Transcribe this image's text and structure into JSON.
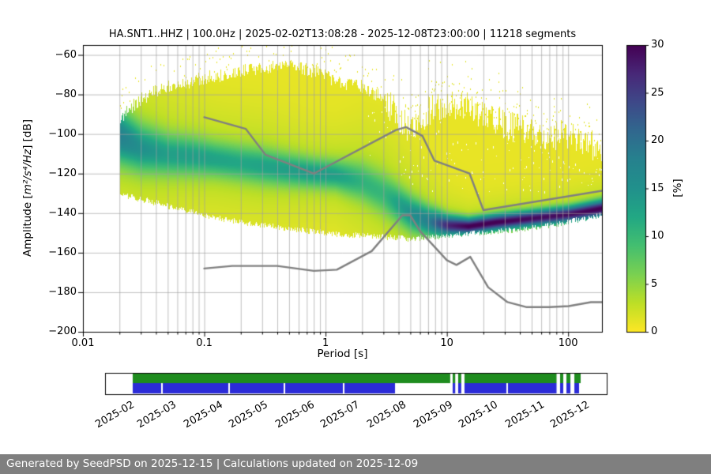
{
  "station": {
    "id": "HA.SNT1..HHZ",
    "sampling_rate": "100.0Hz",
    "start": "2025-02-02T13:08:28",
    "end": "2025-12-08T23:00:00",
    "segments": "11218"
  },
  "footer": {
    "text": "Generated by SeedPSD on 2025-12-15 | Calculations updated on 2025-12-09"
  },
  "colors": {
    "background": "#ffffff",
    "spine": "#000000",
    "grid": "rgba(160,160,160,0.75)",
    "footer_bg": "#7f7f7f",
    "footer_text": "#ffffff",
    "timeline_green": "#1e8c1e",
    "timeline_blue": "#2b2bd8",
    "noise_model_line": "#808080"
  },
  "chart_data": {
    "type": "heatmap",
    "title": "HA.SNT1..HHZ | 100.0Hz | 2025-02-02T13:08:28 - 2025-12-08T23:00:00 | 11218 segments",
    "xlabel": "Period [s]",
    "ylabel": {
      "pre": "Amplitude [",
      "math": "m²/s⁴/Hz",
      "post": "] [dB]"
    },
    "x_scale": "log",
    "xlim": [
      0.01,
      190
    ],
    "ylim": [
      -200,
      -55
    ],
    "grid": true,
    "x_ticks": [
      {
        "v": 0.01,
        "label": "0.01"
      },
      {
        "v": 0.1,
        "label": "0.1"
      },
      {
        "v": 1,
        "label": "1"
      },
      {
        "v": 10,
        "label": "10"
      },
      {
        "v": 100,
        "label": "100"
      }
    ],
    "y_ticks": [
      {
        "v": -60,
        "label": "−60"
      },
      {
        "v": -80,
        "label": "−80"
      },
      {
        "v": -100,
        "label": "−100"
      },
      {
        "v": -120,
        "label": "−120"
      },
      {
        "v": -140,
        "label": "−140"
      },
      {
        "v": -160,
        "label": "−160"
      },
      {
        "v": -180,
        "label": "−180"
      },
      {
        "v": -200,
        "label": "−200"
      }
    ],
    "colorbar": {
      "label": "[%]",
      "min": 0,
      "max": 30,
      "ticks": [
        {
          "v": 0,
          "label": "0"
        },
        {
          "v": 5,
          "label": "5"
        },
        {
          "v": 10,
          "label": "10"
        },
        {
          "v": 15,
          "label": "15"
        },
        {
          "v": 20,
          "label": "20"
        },
        {
          "v": 25,
          "label": "25"
        },
        {
          "v": 30,
          "label": "30"
        }
      ],
      "colormap": "viridis reversed (0% = yellow, 30% = dark purple)",
      "colormap_stops_dark_to_yellow": [
        "#440154",
        "#482878",
        "#3e4989",
        "#31688e",
        "#26828e",
        "#21918c",
        "#22a884",
        "#44bf70",
        "#7ad151",
        "#bddf26",
        "#fde725"
      ]
    },
    "ppsd_distribution": {
      "base_percent": 1.0,
      "periods": [
        0.02,
        0.03,
        0.05,
        0.08,
        0.12,
        0.2,
        0.3,
        0.5,
        0.8,
        1.2,
        2,
        3,
        5,
        7,
        10,
        15,
        25,
        50,
        100,
        190
      ],
      "top_db": [
        -92,
        -82,
        -76,
        -73,
        -71,
        -68,
        -66.5,
        -65.5,
        -68,
        -73,
        -76,
        -82,
        -98,
        -88,
        -84,
        -86,
        -93,
        -100,
        -101,
        -107
      ],
      "bottom_db": [
        -130,
        -132.5,
        -136,
        -139,
        -142,
        -144,
        -145.5,
        -147.5,
        -149,
        -150,
        -151,
        -151.5,
        -152.5,
        -152,
        -151,
        -150,
        -149,
        -147,
        -144,
        -140.5
      ],
      "mode_db": [
        -101,
        -107,
        -110,
        -111,
        -112.5,
        -114.5,
        -116,
        -118,
        -119.5,
        -120.5,
        -124,
        -130,
        -140,
        -144,
        -146,
        -146.5,
        -144.5,
        -142.5,
        -140.5,
        -137.5
      ],
      "peak_percent": [
        15,
        12,
        10,
        10,
        9.5,
        9,
        9.5,
        10,
        10.5,
        10,
        7.5,
        7,
        12,
        15,
        24,
        27,
        27,
        26,
        26,
        27
      ],
      "sigma_db": [
        9,
        8,
        7,
        6.5,
        6,
        6,
        6,
        5.5,
        5,
        5,
        6.5,
        7,
        6,
        5,
        3.5,
        2.8,
        2.8,
        2.8,
        2.8,
        3
      ]
    },
    "noise_models": {
      "color": "#808080",
      "high_polyline": [
        [
          0.1,
          -91.5
        ],
        [
          0.22,
          -97.4
        ],
        [
          0.32,
          -110.5
        ],
        [
          0.8,
          -120.0
        ],
        [
          3.8,
          -98.0
        ],
        [
          4.6,
          -96.5
        ],
        [
          6.3,
          -101.0
        ],
        [
          7.9,
          -113.5
        ],
        [
          15.4,
          -120.0
        ],
        [
          20.0,
          -138.5
        ],
        [
          190,
          -128.7
        ]
      ],
      "low_polyline": [
        [
          0.1,
          -168.0
        ],
        [
          0.17,
          -166.7
        ],
        [
          0.4,
          -166.7
        ],
        [
          0.8,
          -169.2
        ],
        [
          1.24,
          -168.6
        ],
        [
          2.4,
          -159.2
        ],
        [
          4.3,
          -141.1
        ],
        [
          5.0,
          -141.1
        ],
        [
          6.0,
          -149.0
        ],
        [
          10.0,
          -163.8
        ],
        [
          12.0,
          -166.2
        ],
        [
          15.6,
          -162.1
        ],
        [
          21.9,
          -177.5
        ],
        [
          31.6,
          -185.0
        ],
        [
          45.0,
          -187.5
        ],
        [
          70.0,
          -187.5
        ],
        [
          101.0,
          -187.0
        ],
        [
          154.0,
          -185.0
        ],
        [
          190,
          -185.0
        ]
      ]
    }
  },
  "timeline": {
    "month_ticks": [
      {
        "label": "2025-02",
        "f": 0.0509
      },
      {
        "label": "2025-03",
        "f": 0.1347
      },
      {
        "label": "2025-04",
        "f": 0.2275
      },
      {
        "label": "2025-05",
        "f": 0.3174
      },
      {
        "label": "2025-06",
        "f": 0.4102
      },
      {
        "label": "2025-07",
        "f": 0.5
      },
      {
        "label": "2025-08",
        "f": 0.5928
      },
      {
        "label": "2025-09",
        "f": 0.6856
      },
      {
        "label": "2025-10",
        "f": 0.7754
      },
      {
        "label": "2025-11",
        "f": 0.8683
      },
      {
        "label": "2025-12",
        "f": 0.9581
      }
    ],
    "rows": [
      {
        "name": "green",
        "color": "#1e8c1e",
        "segments": [
          [
            0.0551,
            0.688
          ],
          [
            0.6929,
            0.698
          ],
          [
            0.7039,
            0.71
          ],
          [
            0.7165,
            0.9
          ],
          [
            0.9071,
            0.9134
          ],
          [
            0.9197,
            0.9276
          ],
          [
            0.9355,
            0.948
          ]
        ]
      },
      {
        "name": "blue",
        "color": "#2b2bd8",
        "segments": [
          [
            0.0551,
            0.1118
          ],
          [
            0.115,
            0.2457
          ],
          [
            0.2488,
            0.3559
          ],
          [
            0.3591,
            0.474
          ],
          [
            0.4772,
            0.578
          ],
          [
            0.6929,
            0.698
          ],
          [
            0.7039,
            0.71
          ],
          [
            0.7165,
            0.8
          ],
          [
            0.8031,
            0.9
          ],
          [
            0.9071,
            0.9134
          ],
          [
            0.9197,
            0.9276
          ],
          [
            0.9355,
            0.9449
          ]
        ]
      }
    ]
  }
}
